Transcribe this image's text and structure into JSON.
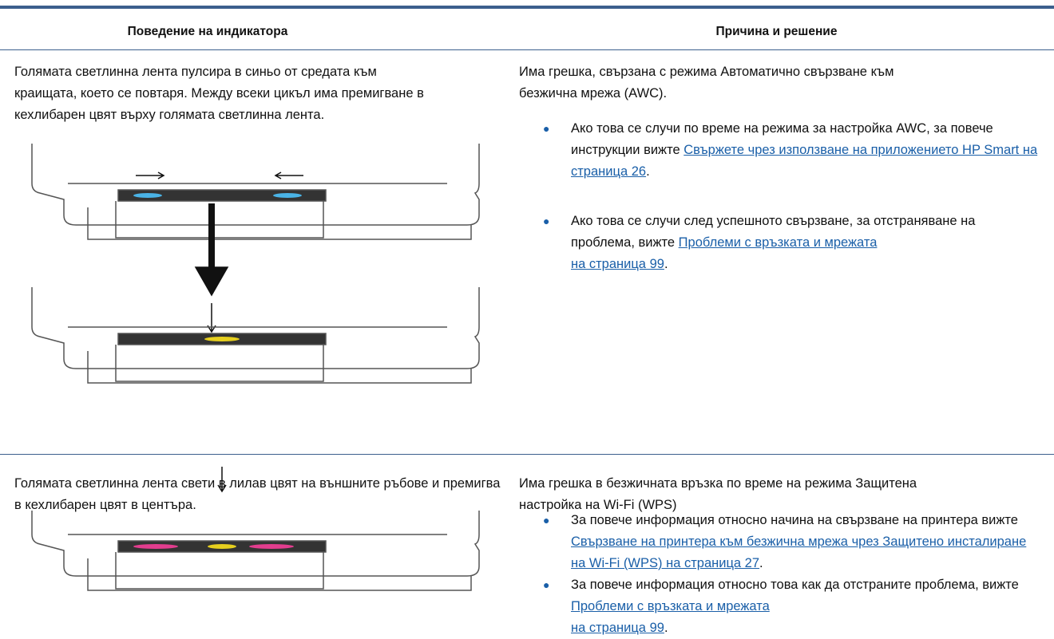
{
  "table": {
    "headers": [
      "Поведение на индикатора",
      "Причина и решение"
    ],
    "rows": [
      {
        "behavior": "Голямата светлинна лента пулсира в синьо от средата към краищата, което се повтаря. Между всеки цикъл има премигване в кехлибарен цвят върху голямата светлинна лента.",
        "cause": "Има грешка, свързана с режима Автоматично свързване към безжична мрежа (AWC).",
        "bullets": [
          {
            "text": "Ако това се случи по време на режима за настройка AWC, за повече инструкции вижте",
            "link": [
              "Свържете чрез използване на приложението HP Smart на страница 26"
            ],
            "after": "."
          },
          {
            "text": "Ако това се случи след успешното свързване, за отстраняване на проблема, вижте",
            "link": [
              "Проблеми с връзката и мрежата",
              "на страница 99"
            ],
            "after": "."
          }
        ]
      },
      {
        "behavior": "Голямата светлинна лента свети в лилав цвят на външните ръбове и премигва в кехлибарен цвят в центъра.",
        "cause": "Има грешка в безжичната връзка по време на режима Защитена настройка на Wi-Fi (WPS)",
        "bullets": [
          {
            "text": "За повече информация относно начина на свързване на принтера вижте",
            "link": [
              "Свързване на принтера към безжична мрежа чрез Защитено инсталиране на Wi-Fi (WPS) на страница 27"
            ],
            "after": "."
          },
          {
            "text": "За повече информация относно това как да отстраните проблема, вижте",
            "link": [
              "Проблеми с връзката и мрежата",
              "на страница 99"
            ],
            "after": "."
          }
        ]
      }
    ]
  }
}
